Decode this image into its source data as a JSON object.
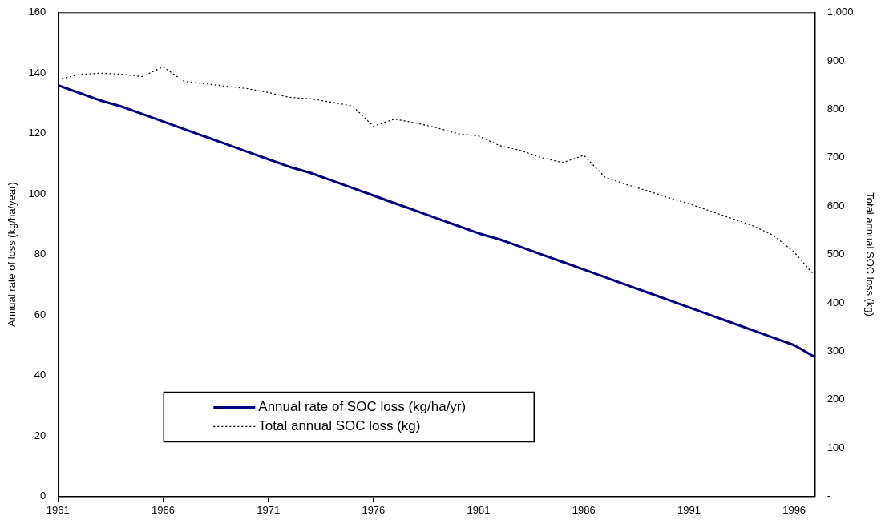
{
  "chart_data": {
    "type": "line",
    "ylabel": "Annual rate of loss (kg/ha/year)",
    "y2label": "Total annual SOC loss (kg)",
    "categories": [
      "1961",
      null,
      null,
      null,
      null,
      "1966",
      null,
      null,
      null,
      null,
      "1971",
      null,
      null,
      null,
      null,
      "1976",
      null,
      null,
      null,
      null,
      "1981",
      null,
      null,
      null,
      null,
      "1986",
      null,
      null,
      null,
      null,
      "1991",
      null,
      null,
      null,
      null,
      "1996",
      null
    ],
    "series": [
      {
        "name": "Annual rate of SOC loss (kg/ha/yr)",
        "color": "#000080",
        "line_style": "solid",
        "values": [
          136,
          133.5,
          131,
          129,
          126.5,
          124,
          121.5,
          119,
          116.5,
          114,
          111.5,
          109,
          107,
          104.5,
          102,
          99.5,
          97,
          94.5,
          92,
          89.5,
          87,
          85,
          82.5,
          80,
          77.5,
          75,
          72.5,
          70,
          67.5,
          65,
          62.5,
          60,
          57.5,
          55,
          52.5,
          50,
          46
        ]
      },
      {
        "name": "Total annual SOC loss (kg)",
        "color": "#000000",
        "line_style": "dotted",
        "axis": "y2",
        "values": [
          862,
          872,
          875,
          873,
          868,
          888,
          858,
          853,
          848,
          843,
          835,
          825,
          822,
          815,
          807,
          765,
          780,
          772,
          762,
          750,
          745,
          725,
          715,
          700,
          690,
          705,
          660,
          645,
          632,
          618,
          605,
          590,
          575,
          560,
          540,
          505,
          455
        ]
      }
    ],
    "ylim": [
      0,
      160
    ],
    "yticks": [
      0,
      20,
      40,
      60,
      80,
      100,
      120,
      140,
      160
    ],
    "y2lim": [
      0,
      1000
    ],
    "y2ticks": [
      {
        "value": 0,
        "label": "-"
      },
      100,
      200,
      300,
      400,
      500,
      600,
      700,
      800,
      900,
      {
        "value": 1000,
        "label": "1,000"
      }
    ],
    "grid": false,
    "legend": "bottom left",
    "marker": "none"
  }
}
